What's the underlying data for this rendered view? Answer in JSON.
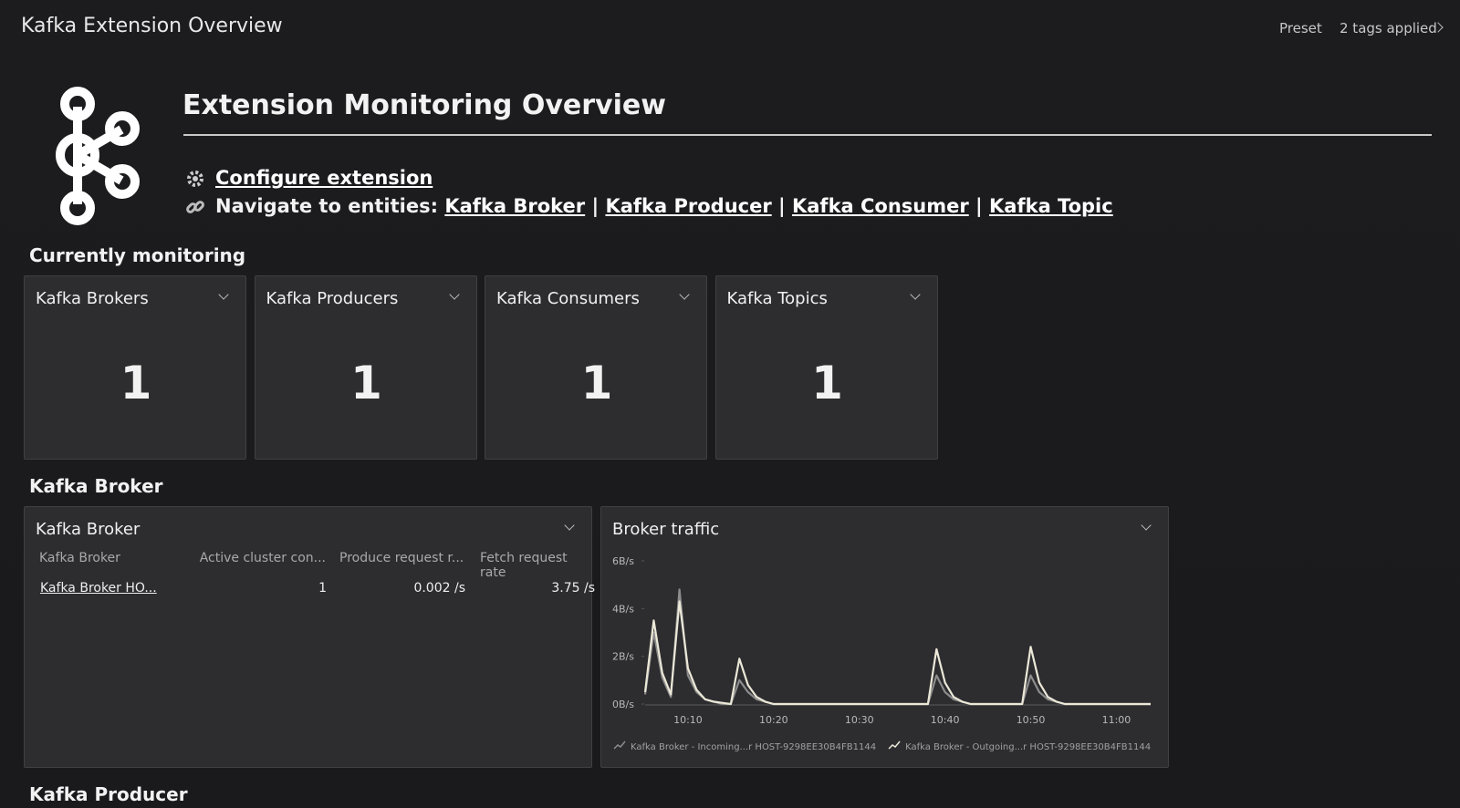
{
  "header": {
    "title": "Kafka Extension Overview",
    "preset": "Preset",
    "tags": "2 tags applied"
  },
  "overview": {
    "title": "Extension Monitoring Overview",
    "configure": "Configure extension",
    "navigate_label": "Navigate to entities:",
    "links": [
      "Kafka Broker",
      "Kafka Producer",
      "Kafka Consumer",
      "Kafka Topic"
    ],
    "separator": "|"
  },
  "monitoring": {
    "title": "Currently monitoring",
    "tiles": [
      {
        "title": "Kafka Brokers",
        "value": 1
      },
      {
        "title": "Kafka Producers",
        "value": 1
      },
      {
        "title": "Kafka Consumers",
        "value": 1
      },
      {
        "title": "Kafka Topics",
        "value": 1
      }
    ]
  },
  "broker_section": {
    "title": "Kafka Broker",
    "table": {
      "title": "Kafka Broker",
      "columns": [
        "Kafka Broker",
        "Active cluster con...",
        "Produce request r...",
        "Fetch request rate"
      ],
      "rows": [
        [
          "Kafka Broker HO...",
          "1",
          "0.002 /s",
          "3.75 /s"
        ]
      ]
    }
  },
  "chart_data": {
    "type": "line",
    "title": "Broker traffic",
    "x": [
      "10:05",
      "10:06",
      "10:07",
      "10:08",
      "10:09",
      "10:10",
      "10:11",
      "10:12",
      "10:13",
      "10:14",
      "10:15",
      "10:16",
      "10:17",
      "10:18",
      "10:19",
      "10:20",
      "10:21",
      "10:22",
      "10:23",
      "10:24",
      "10:25",
      "10:26",
      "10:27",
      "10:28",
      "10:29",
      "10:30",
      "10:31",
      "10:32",
      "10:33",
      "10:34",
      "10:35",
      "10:36",
      "10:37",
      "10:38",
      "10:39",
      "10:40",
      "10:41",
      "10:42",
      "10:43",
      "10:44",
      "10:45",
      "10:46",
      "10:47",
      "10:48",
      "10:49",
      "10:50",
      "10:51",
      "10:52",
      "10:53",
      "10:54",
      "10:55",
      "10:56",
      "10:57",
      "10:58",
      "10:59",
      "11:00",
      "11:01",
      "11:02",
      "11:03",
      "11:04"
    ],
    "xticks": [
      "10:10",
      "10:20",
      "10:30",
      "10:40",
      "10:50",
      "11:00"
    ],
    "ylim": [
      0,
      6
    ],
    "yticks": [
      {
        "value": 0,
        "label": "0B/s"
      },
      {
        "value": 2,
        "label": "2B/s"
      },
      {
        "value": 4,
        "label": "4B/s"
      },
      {
        "value": 6,
        "label": "6B/s"
      }
    ],
    "grid": false,
    "series": [
      {
        "name": "Kafka Broker - Incoming...r HOST-9298EE30B4FB1144",
        "color": "#8c8c8c",
        "values": [
          0.4,
          3.0,
          1.1,
          0.3,
          4.8,
          1.2,
          0.5,
          0.2,
          0.1,
          0,
          0,
          1.0,
          0.5,
          0.2,
          0.1,
          0,
          0,
          0,
          0,
          0,
          0,
          0,
          0,
          0,
          0,
          0,
          0,
          0,
          0,
          0,
          0,
          0,
          0,
          0,
          1.2,
          0.5,
          0.2,
          0.1,
          0,
          0,
          0,
          0,
          0,
          0,
          0,
          1.2,
          0.5,
          0.2,
          0.1,
          0,
          0,
          0,
          0,
          0,
          0,
          0,
          0,
          0,
          0,
          0
        ]
      },
      {
        "name": "Kafka Broker - Outgoing...r HOST-9298EE30B4FB1144",
        "color": "#ece8d8",
        "values": [
          0.5,
          3.5,
          1.3,
          0.4,
          4.3,
          1.5,
          0.6,
          0.2,
          0.1,
          0.05,
          0,
          1.9,
          0.8,
          0.3,
          0.1,
          0,
          0,
          0,
          0,
          0,
          0,
          0,
          0,
          0,
          0,
          0,
          0,
          0,
          0,
          0,
          0,
          0,
          0,
          0,
          2.3,
          0.9,
          0.3,
          0.1,
          0,
          0,
          0,
          0,
          0,
          0,
          0,
          2.4,
          0.9,
          0.3,
          0.1,
          0,
          0,
          0,
          0,
          0,
          0,
          0,
          0,
          0,
          0,
          0
        ]
      }
    ]
  },
  "producer_section": {
    "title": "Kafka Producer"
  }
}
